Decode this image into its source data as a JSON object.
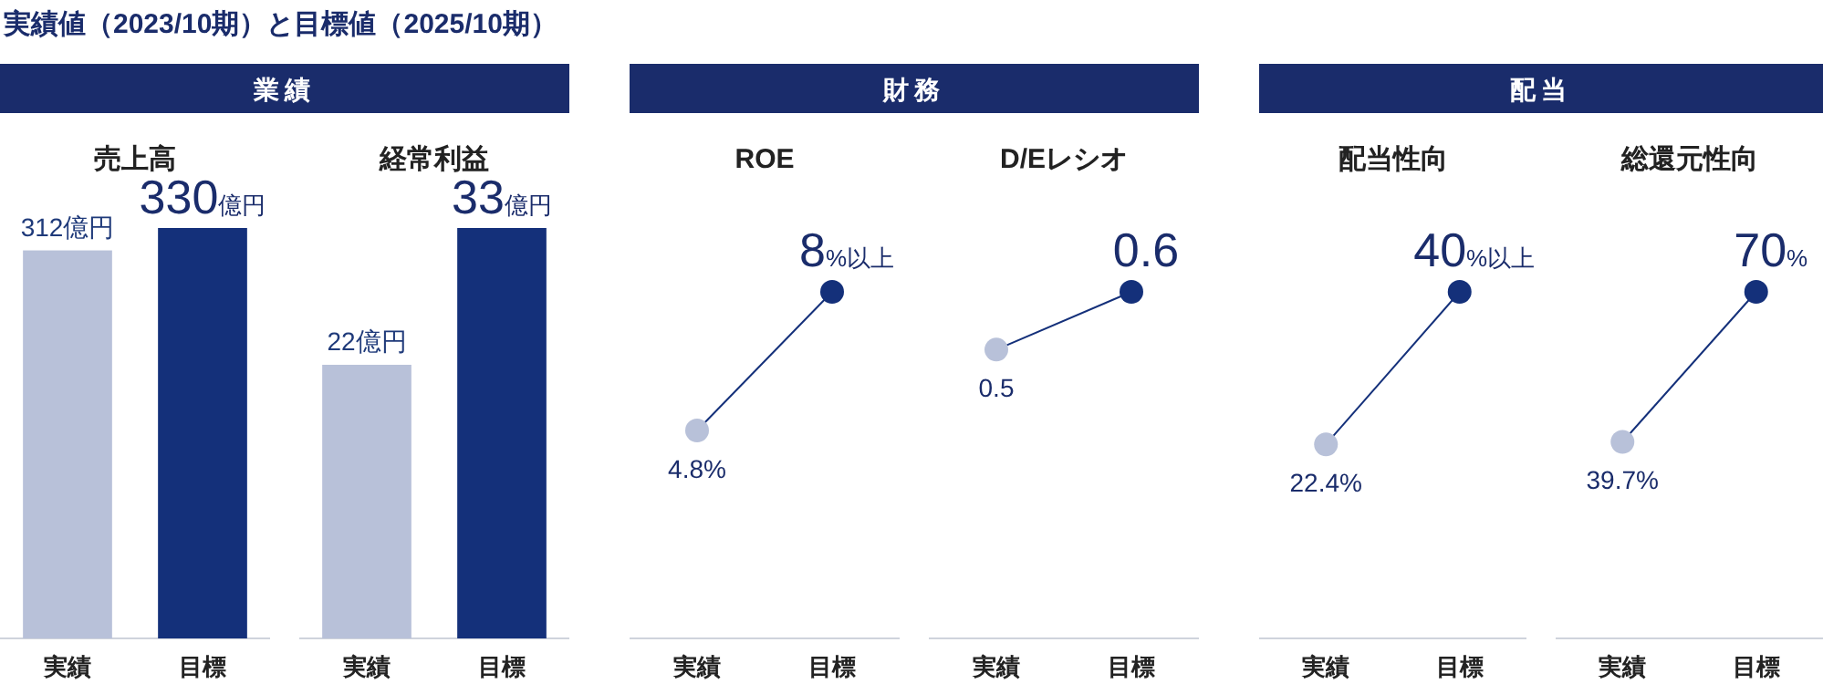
{
  "chart_data": [
    {
      "type": "other",
      "title": "実績値（2023/10期）と目標値（2025/10期）",
      "annotations": [
        "業績",
        "財務",
        "配当"
      ]
    },
    {
      "type": "bar",
      "title": "売上高",
      "categories": [
        "実績",
        "目標"
      ],
      "values": [
        312,
        330
      ],
      "colors": [
        "#b8c1d9",
        "#14307a"
      ],
      "value_labels": [
        "312億円",
        "330億円"
      ]
    },
    {
      "type": "bar",
      "title": "経常利益",
      "categories": [
        "実績",
        "目標"
      ],
      "values": [
        22,
        33
      ],
      "colors": [
        "#b8c1d9",
        "#14307a"
      ],
      "value_labels": [
        "22億円",
        "33億円"
      ]
    },
    {
      "type": "line",
      "title": "ROE",
      "categories": [
        "実績",
        "目標"
      ],
      "values": [
        4.8,
        8
      ],
      "colors": [
        "#b8c1d9",
        "#14307a"
      ],
      "marker": "circle",
      "value_labels": [
        "4.8%",
        "8%以上"
      ]
    },
    {
      "type": "line",
      "title": "D/Eレシオ",
      "categories": [
        "実績",
        "目標"
      ],
      "values": [
        0.5,
        0.6
      ],
      "colors": [
        "#b8c1d9",
        "#14307a"
      ],
      "marker": "circle",
      "value_labels": [
        "0.5",
        "0.6"
      ]
    },
    {
      "type": "line",
      "title": "配当性向",
      "categories": [
        "実績",
        "目標"
      ],
      "values": [
        22.4,
        40
      ],
      "colors": [
        "#b8c1d9",
        "#14307a"
      ],
      "marker": "circle",
      "value_labels": [
        "22.4%",
        "40%以上"
      ]
    },
    {
      "type": "line",
      "title": "総還元性向",
      "categories": [
        "実績",
        "目標"
      ],
      "values": [
        39.7,
        70
      ],
      "colors": [
        "#b8c1d9",
        "#14307a"
      ],
      "marker": "circle",
      "value_labels": [
        "39.7%",
        "70%"
      ]
    }
  ]
}
